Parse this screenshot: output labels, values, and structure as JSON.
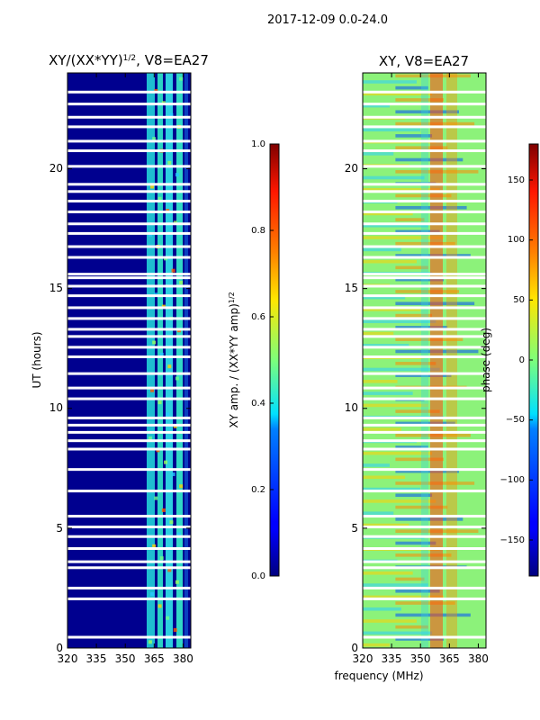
{
  "chart_data": [
    {
      "type": "heatmap",
      "suptitle": "2017-12-09 0.0-24.0",
      "title": "XY/(XX*YY)^1/2, V8=EA27",
      "title_main": "XY/(XX*YY)",
      "title_exp": "1/2",
      "title_tail": ", V8=EA27",
      "xlabel": "",
      "ylabel": "UT (hours)",
      "xlim": [
        320,
        384
      ],
      "ylim": [
        0,
        24
      ],
      "xticks": [
        320,
        335,
        350,
        365,
        380
      ],
      "xtick_labels": [
        "320",
        "335",
        "350",
        "365",
        "380"
      ],
      "yticks": [
        0,
        5,
        10,
        15,
        20
      ],
      "ytick_labels": [
        "0",
        "5",
        "10",
        "15",
        "20"
      ],
      "colorbar": {
        "label": "XY amp. / (XX*YY amp)^1/2",
        "label_main": "XY amp. / (XX*YY amp)",
        "label_exp": "1/2",
        "range": [
          0.0,
          1.0
        ],
        "ticks": [
          0.0,
          0.2,
          0.4,
          0.6,
          0.8,
          1.0
        ],
        "tick_labels": [
          "0.0",
          "0.2",
          "0.4",
          "0.6",
          "0.8",
          "1.0"
        ],
        "colormap": "jet"
      },
      "description_values": {
        "background_level": 0.05,
        "bright_band_frequencies_mhz": [
          [
            360,
            366
          ],
          [
            367,
            370
          ],
          [
            371,
            375
          ],
          [
            376,
            379
          ]
        ],
        "bright_band_level": 0.45
      }
    },
    {
      "type": "heatmap",
      "title": "XY, V8=EA27",
      "xlabel": "frequency (MHz)",
      "ylabel": "",
      "xlim": [
        320,
        384
      ],
      "ylim": [
        0,
        24
      ],
      "xticks": [
        320,
        335,
        350,
        365,
        380
      ],
      "xtick_labels": [
        "320",
        "335",
        "350",
        "365",
        "380"
      ],
      "yticks": [
        0,
        5,
        10,
        15,
        20
      ],
      "ytick_labels": [
        "0",
        "5",
        "10",
        "15",
        "20"
      ],
      "colorbar": {
        "label": "phase (deg)",
        "range": [
          -180,
          180
        ],
        "ticks": [
          -150,
          -100,
          -50,
          0,
          50,
          100,
          150
        ],
        "tick_labels": [
          "−150",
          "−100",
          "−50",
          "0",
          "50",
          "100",
          "150"
        ],
        "colormap": "jet"
      }
    }
  ],
  "flagged_ut_gaps_hours": [
    0.45,
    2.05,
    2.5,
    3.35,
    3.6,
    4.15,
    4.65,
    5.05,
    5.5,
    6.55,
    7.45,
    8.3,
    8.65,
    9.0,
    9.3,
    9.6,
    10.4,
    10.85,
    11.45,
    12.15,
    12.55,
    13.0,
    13.3,
    13.75,
    14.2,
    14.7,
    15.1,
    15.45,
    15.6,
    16.3,
    16.75,
    17.3,
    17.7,
    18.2,
    18.65,
    19.05,
    19.35,
    20.1,
    20.75,
    21.15,
    21.75,
    22.15,
    22.7,
    23.2
  ]
}
